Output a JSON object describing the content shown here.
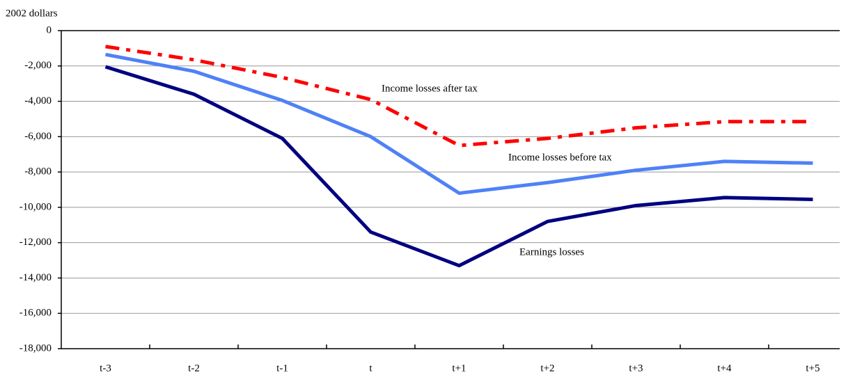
{
  "chart_data": {
    "type": "line",
    "y_axis_label": "2002 dollars",
    "categories": [
      "t-3",
      "t-2",
      "t-1",
      "t",
      "t+1",
      "t+2",
      "t+3",
      "t+4",
      "t+5"
    ],
    "series": [
      {
        "name": "Income losses after tax",
        "color": "#ff0000",
        "values": [
          -900,
          -1650,
          -2650,
          -3900,
          -6500,
          -6100,
          -5500,
          -5150,
          -5150
        ]
      },
      {
        "name": "Income losses before tax",
        "color": "#4f81f7",
        "values": [
          -1350,
          -2300,
          -3950,
          -6000,
          -9200,
          -8600,
          -7900,
          -7400,
          -7500
        ]
      },
      {
        "name": "Earnings losses",
        "color": "#000080",
        "values": [
          -2050,
          -3600,
          -6100,
          -11400,
          -13300,
          -10800,
          -9900,
          -9450,
          -9550
        ]
      }
    ],
    "ylim": [
      -18000,
      0
    ],
    "yticks": [
      {
        "value": -18000,
        "label": "-18,000"
      },
      {
        "value": -16000,
        "label": "-16,000"
      },
      {
        "value": -14000,
        "label": "-14,000"
      },
      {
        "value": -12000,
        "label": "-12,000"
      },
      {
        "value": -10000,
        "label": "-10,000"
      },
      {
        "value": -8000,
        "label": "-8,000"
      },
      {
        "value": -6000,
        "label": "-6,000"
      },
      {
        "value": -4000,
        "label": "-4,000"
      },
      {
        "value": -2000,
        "label": "-2,000"
      },
      0
    ],
    "grid": true
  }
}
